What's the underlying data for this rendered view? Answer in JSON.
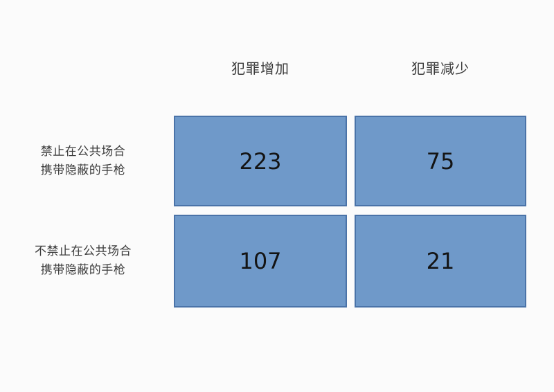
{
  "chart_data": {
    "type": "table",
    "title": "",
    "columns": [
      "犯罪增加",
      "犯罪减少"
    ],
    "rows": [
      "禁止在公共场合携带隐蔽的手枪",
      "不禁止在公共场合携带隐蔽的手枪"
    ],
    "values": [
      [
        223,
        75
      ],
      [
        107,
        21
      ]
    ],
    "legend_position": "none",
    "grid": false
  },
  "table": {
    "col_headers": [
      "犯罪增加",
      "犯罪减少"
    ],
    "row_headers": [
      [
        "禁止在公共场合",
        "携带隐蔽的手枪"
      ],
      [
        "不禁止在公共场合",
        "携带隐蔽的手枪"
      ]
    ],
    "cells": [
      [
        "223",
        "75"
      ],
      [
        "107",
        "21"
      ]
    ]
  },
  "colors": {
    "cell_fill": "#6f99c9",
    "cell_border": "#4a73a8",
    "background": "#fbfbfb",
    "text": "#3b3b3b",
    "number_text": "#141414"
  }
}
